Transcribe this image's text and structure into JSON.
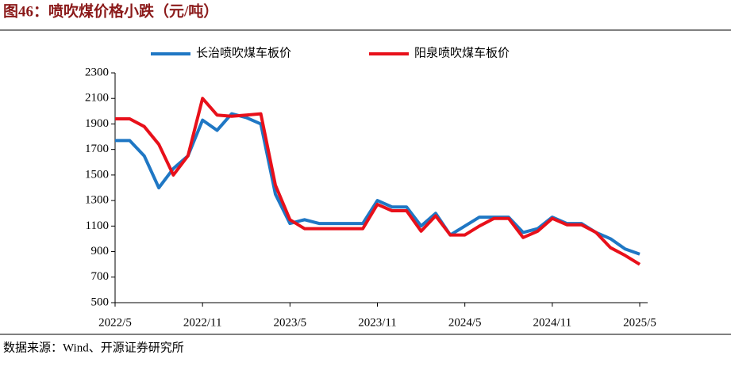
{
  "chart_data": {
    "type": "line",
    "title": "图46：喷吹煤价格小跌（元/吨）",
    "source": "数据来源：Wind、开源证券研究所",
    "x": [
      "2022/5",
      "2022/6",
      "2022/7",
      "2022/8",
      "2022/9",
      "2022/10",
      "2022/11",
      "2022/12",
      "2023/1",
      "2023/2",
      "2023/3",
      "2023/4",
      "2023/5",
      "2023/6",
      "2023/7",
      "2023/8",
      "2023/9",
      "2023/10",
      "2023/11",
      "2023/12",
      "2024/1",
      "2024/2",
      "2024/3",
      "2024/4",
      "2024/5",
      "2024/6",
      "2024/7",
      "2024/8",
      "2024/9",
      "2024/10",
      "2024/11",
      "2024/12",
      "2025/1",
      "2025/2",
      "2025/3",
      "2025/4",
      "2025/5"
    ],
    "series": [
      {
        "name": "长治喷吹煤车板价",
        "color": "#1f77c4",
        "values": [
          1770,
          1770,
          1650,
          1400,
          1550,
          1650,
          1930,
          1850,
          1980,
          1950,
          1900,
          1350,
          1120,
          1150,
          1120,
          1120,
          1120,
          1120,
          1300,
          1250,
          1250,
          1100,
          1200,
          1030,
          1100,
          1170,
          1170,
          1170,
          1050,
          1080,
          1170,
          1120,
          1120,
          1050,
          1000,
          920,
          880
        ]
      },
      {
        "name": "阳泉喷吹煤车板价",
        "color": "#e8101a",
        "values": [
          1940,
          1940,
          1880,
          1740,
          1500,
          1650,
          2100,
          1970,
          1960,
          1970,
          1980,
          1420,
          1150,
          1080,
          1080,
          1080,
          1080,
          1080,
          1270,
          1220,
          1220,
          1060,
          1180,
          1030,
          1030,
          1100,
          1160,
          1160,
          1010,
          1060,
          1160,
          1110,
          1110,
          1050,
          930,
          870,
          800
        ]
      }
    ],
    "xlim": [
      "2022/5",
      "2025/5"
    ],
    "xticks": [
      "2022/5",
      "2022/11",
      "2023/5",
      "2023/11",
      "2024/5",
      "2024/11",
      "2025/5"
    ],
    "ylim": [
      500,
      2300
    ],
    "yticks": [
      500,
      700,
      900,
      1100,
      1300,
      1500,
      1700,
      1900,
      2100,
      2300
    ]
  }
}
